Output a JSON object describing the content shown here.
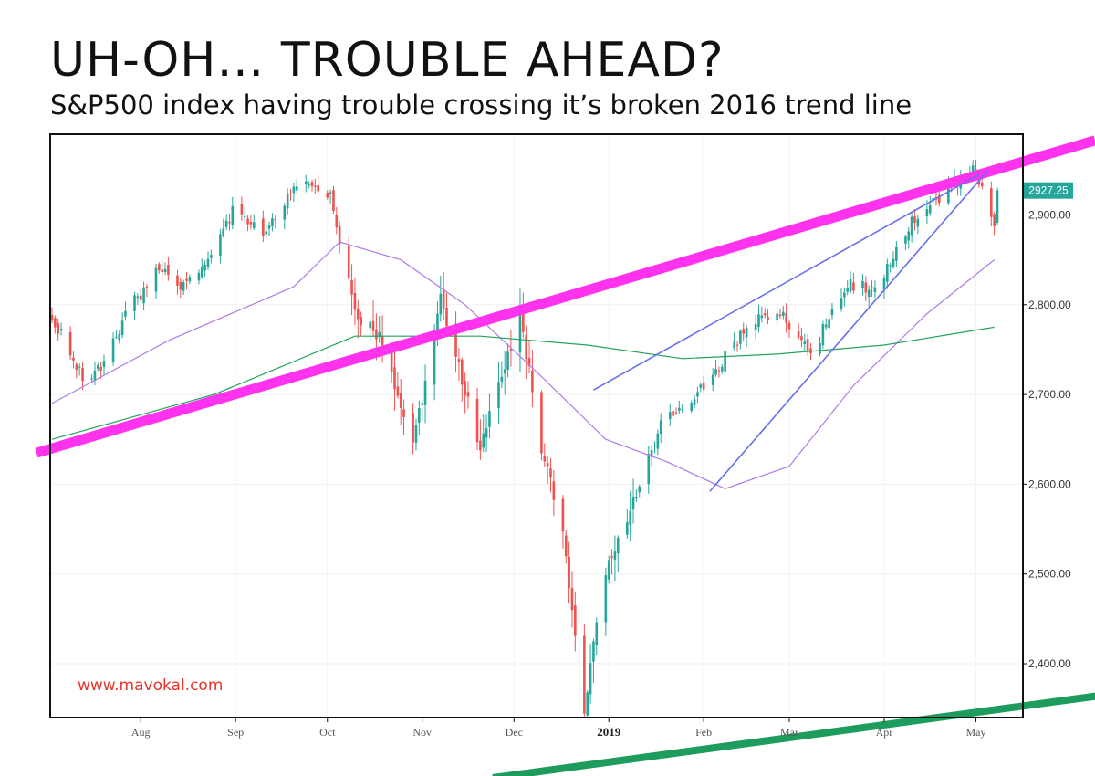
{
  "header": {
    "title": "UH-OH… TROUBLE AHEAD?",
    "subtitle": "S&P500 index having trouble crossing it’s broken 2016 trend line"
  },
  "watermark": "www.mavokal.com",
  "colors": {
    "up": "#26a69a",
    "down": "#ef5350",
    "trend_magenta": "#ff33ee",
    "ma_fast": "#b07be8",
    "ma_slow": "#22a35a",
    "wedge": "#6670ee",
    "bottom_trend": "#1e9c5e",
    "price_tag": "#26a69a",
    "watermark": "#e8332b"
  },
  "chart_data": {
    "type": "candlestick",
    "instrument": "S&P500 index",
    "ylim": [
      2340,
      2990
    ],
    "y_ticks": [
      2400,
      2500,
      2600,
      2700,
      2800,
      2900
    ],
    "y_tick_labels": [
      "2,400.00",
      "2,500.00",
      "2,600.00",
      "2,700.00",
      "2,800.00",
      "2,900.00"
    ],
    "x_tick_labels": [
      "Aug",
      "Sep",
      "Oct",
      "Nov",
      "Dec",
      "2019",
      "Feb",
      "Mar",
      "Apr",
      "May"
    ],
    "x_tick_dates": [
      "2018-08-01",
      "2018-09-01",
      "2018-10-01",
      "2018-11-01",
      "2018-12-01",
      "2019-01-01",
      "2019-02-01",
      "2019-03-01",
      "2019-04-01",
      "2019-05-01"
    ],
    "x_range": [
      "2018-07-03",
      "2019-05-08"
    ],
    "last_price_label": "2927.25",
    "last_price": 2927.25,
    "grid": true,
    "legend": "none",
    "close_series": [
      {
        "date": "2018-07-03",
        "close": 2785
      },
      {
        "date": "2018-07-13",
        "close": 2720
      },
      {
        "date": "2018-07-20",
        "close": 2730
      },
      {
        "date": "2018-07-27",
        "close": 2790
      },
      {
        "date": "2018-08-07",
        "close": 2840
      },
      {
        "date": "2018-08-15",
        "close": 2820
      },
      {
        "date": "2018-08-24",
        "close": 2860
      },
      {
        "date": "2018-09-01",
        "close": 2910
      },
      {
        "date": "2018-09-10",
        "close": 2875
      },
      {
        "date": "2018-09-20",
        "close": 2935
      },
      {
        "date": "2018-10-02",
        "close": 2920
      },
      {
        "date": "2018-10-10",
        "close": 2790
      },
      {
        "date": "2018-10-19",
        "close": 2760
      },
      {
        "date": "2018-10-29",
        "close": 2640
      },
      {
        "date": "2018-11-07",
        "close": 2810
      },
      {
        "date": "2018-11-20",
        "close": 2640
      },
      {
        "date": "2018-12-03",
        "close": 2790
      },
      {
        "date": "2018-12-10",
        "close": 2640
      },
      {
        "date": "2018-12-17",
        "close": 2545
      },
      {
        "date": "2018-12-24",
        "close": 2351
      },
      {
        "date": "2018-12-31",
        "close": 2505
      },
      {
        "date": "2019-01-08",
        "close": 2570
      },
      {
        "date": "2019-01-18",
        "close": 2670
      },
      {
        "date": "2019-01-31",
        "close": 2705
      },
      {
        "date": "2019-02-15",
        "close": 2775
      },
      {
        "date": "2019-02-25",
        "close": 2795
      },
      {
        "date": "2019-03-08",
        "close": 2745
      },
      {
        "date": "2019-03-20",
        "close": 2825
      },
      {
        "date": "2019-03-28",
        "close": 2815
      },
      {
        "date": "2019-04-10",
        "close": 2890
      },
      {
        "date": "2019-04-23",
        "close": 2935
      },
      {
        "date": "2019-05-01",
        "close": 2950
      },
      {
        "date": "2019-05-07",
        "close": 2885
      },
      {
        "date": "2019-05-08",
        "close": 2927
      }
    ],
    "moving_average_fast": [
      {
        "date": "2018-07-03",
        "value": 2690
      },
      {
        "date": "2018-08-10",
        "value": 2760
      },
      {
        "date": "2018-09-20",
        "value": 2820
      },
      {
        "date": "2018-10-05",
        "value": 2870
      },
      {
        "date": "2018-10-25",
        "value": 2850
      },
      {
        "date": "2018-11-15",
        "value": 2800
      },
      {
        "date": "2018-12-10",
        "value": 2720
      },
      {
        "date": "2018-12-31",
        "value": 2650
      },
      {
        "date": "2019-01-20",
        "value": 2625
      },
      {
        "date": "2019-02-08",
        "value": 2595
      },
      {
        "date": "2019-03-01",
        "value": 2620
      },
      {
        "date": "2019-03-22",
        "value": 2710
      },
      {
        "date": "2019-04-15",
        "value": 2790
      },
      {
        "date": "2019-05-07",
        "value": 2850
      }
    ],
    "moving_average_slow": [
      {
        "date": "2018-07-03",
        "value": 2650
      },
      {
        "date": "2018-08-25",
        "value": 2700
      },
      {
        "date": "2018-10-10",
        "value": 2765
      },
      {
        "date": "2018-11-20",
        "value": 2765
      },
      {
        "date": "2018-12-25",
        "value": 2755
      },
      {
        "date": "2019-01-25",
        "value": 2740
      },
      {
        "date": "2019-02-25",
        "value": 2745
      },
      {
        "date": "2019-04-01",
        "value": 2755
      },
      {
        "date": "2019-05-07",
        "value": 2775
      }
    ],
    "trend_lines": [
      {
        "role": "broken 2016 trend line",
        "from": {
          "date": "2018-07-03",
          "value": 2640
        },
        "to": {
          "date": "2019-05-07",
          "value": 2950
        }
      },
      {
        "role": "wedge upper",
        "from": {
          "date": "2018-12-27",
          "value": 2705
        },
        "to": {
          "date": "2019-05-02",
          "value": 2945
        }
      },
      {
        "role": "wedge lower",
        "from": {
          "date": "2019-02-03",
          "value": 2592
        },
        "to": {
          "date": "2019-05-05",
          "value": 2950
        }
      }
    ]
  }
}
